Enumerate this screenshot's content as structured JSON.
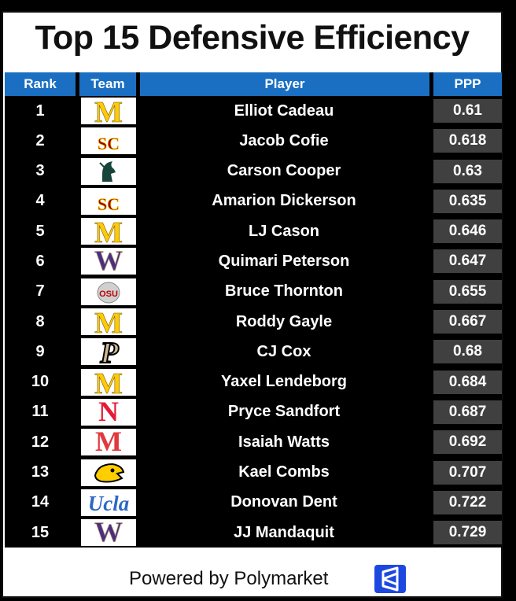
{
  "title": "Top 15 Defensive Efficiency",
  "headers": {
    "rank": "Rank",
    "team": "Team",
    "player": "Player",
    "ppp": "PPP"
  },
  "colors": {
    "header_blue": "#1b6fc2",
    "ppp_cell": "#404040",
    "michigan_maize": "#ffcb05",
    "usc_cardinal": "#990000",
    "msu_green": "#18453b",
    "uw_purple": "#4b2e83",
    "osu_scarlet": "#bb0000",
    "purdue_gold": "#cfb991",
    "nebraska_red": "#e41c38",
    "maryland_red": "#e03a3e",
    "iowa_gold": "#ffcd00",
    "ucla_blue": "#2d68c4",
    "polymarket_blue": "#1d48e0"
  },
  "rows": [
    {
      "rank": "1",
      "team_icon": "michigan-block-m-icon",
      "player": "Elliot Cadeau",
      "ppp": "0.61"
    },
    {
      "rank": "2",
      "team_icon": "usc-sc-icon",
      "player": "Jacob Cofie",
      "ppp": "0.618"
    },
    {
      "rank": "3",
      "team_icon": "michigan-state-spartan-icon",
      "player": "Carson Cooper",
      "ppp": "0.63"
    },
    {
      "rank": "4",
      "team_icon": "usc-sc-icon",
      "player": "Amarion Dickerson",
      "ppp": "0.635"
    },
    {
      "rank": "5",
      "team_icon": "michigan-block-m-icon",
      "player": "LJ Cason",
      "ppp": "0.646"
    },
    {
      "rank": "6",
      "team_icon": "washington-w-icon",
      "player": "Quimari Peterson",
      "ppp": "0.647"
    },
    {
      "rank": "7",
      "team_icon": "ohio-state-icon",
      "player": "Bruce Thornton",
      "ppp": "0.655"
    },
    {
      "rank": "8",
      "team_icon": "michigan-block-m-icon",
      "player": "Roddy Gayle",
      "ppp": "0.667"
    },
    {
      "rank": "9",
      "team_icon": "purdue-p-icon",
      "player": "CJ Cox",
      "ppp": "0.68"
    },
    {
      "rank": "10",
      "team_icon": "michigan-block-m-icon",
      "player": "Yaxel Lendeborg",
      "ppp": "0.684"
    },
    {
      "rank": "11",
      "team_icon": "nebraska-n-icon",
      "player": "Pryce Sandfort",
      "ppp": "0.687"
    },
    {
      "rank": "12",
      "team_icon": "maryland-m-icon",
      "player": "Isaiah Watts",
      "ppp": "0.692"
    },
    {
      "rank": "13",
      "team_icon": "iowa-hawkeye-icon",
      "player": "Kael Combs",
      "ppp": "0.707"
    },
    {
      "rank": "14",
      "team_icon": "ucla-script-icon",
      "player": "Donovan Dent",
      "ppp": "0.722"
    },
    {
      "rank": "15",
      "team_icon": "washington-w-icon",
      "player": "JJ Mandaquit",
      "ppp": "0.729"
    }
  ],
  "logo_text": {
    "michigan": "M",
    "usc": "SC",
    "washington": "W",
    "ohio_state": "OSU",
    "purdue": "P",
    "nebraska": "N",
    "maryland": "M",
    "ucla": "Ucla"
  },
  "footer": {
    "text": "Powered by Polymarket",
    "icon": "polymarket-logo-icon"
  }
}
